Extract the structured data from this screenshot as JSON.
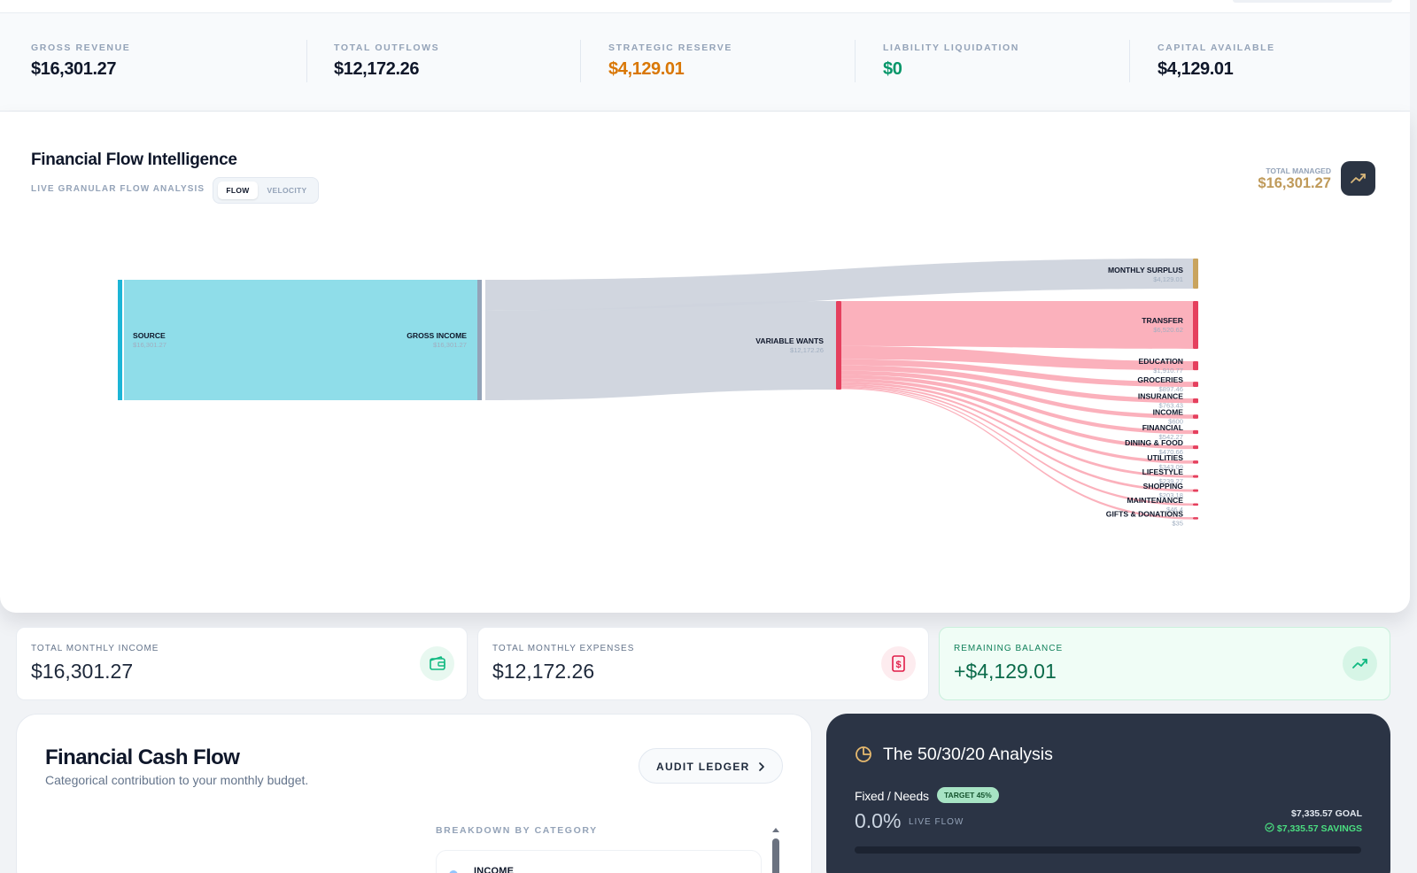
{
  "top_stats": [
    {
      "label": "GROSS REVENUE",
      "value": "$16,301.27",
      "color": "#0f172a"
    },
    {
      "label": "TOTAL OUTFLOWS",
      "value": "$12,172.26",
      "color": "#0f172a"
    },
    {
      "label": "STRATEGIC RESERVE",
      "value": "$4,129.01",
      "color": "#d97706"
    },
    {
      "label": "LIABILITY LIQUIDATION",
      "value": "$0",
      "color": "#059669"
    },
    {
      "label": "CAPITAL AVAILABLE",
      "value": "$4,129.01",
      "color": "#0f172a"
    }
  ],
  "flow": {
    "title": "Financial Flow Intelligence",
    "subtitle": "LIVE GRANULAR FLOW ANALYSIS",
    "toggle": [
      "FLOW",
      "VELOCITY"
    ],
    "active_toggle": "FLOW",
    "total_managed_label": "TOTAL MANAGED",
    "total_managed_value": "$16,301.27",
    "icon": "trending-up-icon"
  },
  "sankey": {
    "colors": {
      "source": "#1cb5d6",
      "source_band": "#8fdde9",
      "neutral_band": "#cfd4dd",
      "neutral_node": "#94a3b8",
      "wants_band": "#fba8b5",
      "wants_node": "#e5405e",
      "surplus_node": "#c9a45e"
    },
    "nodes": [
      {
        "id": "source",
        "name": "SOURCE",
        "value": "$16,301.27"
      },
      {
        "id": "gross",
        "name": "GROSS INCOME",
        "value": "$16,301.27"
      },
      {
        "id": "wants",
        "name": "VARIABLE WANTS",
        "value": "$12,172.26"
      },
      {
        "id": "surplus",
        "name": "MONTHLY SURPLUS",
        "value": "$4,129.01"
      }
    ],
    "categories": [
      {
        "name": "TRANSFER",
        "value": "$6,520.62",
        "amount": 6520.62
      },
      {
        "name": "EDUCATION",
        "value": "$1,910.77",
        "amount": 1910.77
      },
      {
        "name": "GROCERIES",
        "value": "$897.46",
        "amount": 897.46
      },
      {
        "name": "INSURANCE",
        "value": "$763.43",
        "amount": 763.43
      },
      {
        "name": "INCOME",
        "value": "$600",
        "amount": 600
      },
      {
        "name": "FINANCIAL",
        "value": "$542.27",
        "amount": 542.27
      },
      {
        "name": "DINING & FOOD",
        "value": "$470.66",
        "amount": 470.66
      },
      {
        "name": "UTILITIES",
        "value": "$343.09",
        "amount": 343.09
      },
      {
        "name": "LIFESTYLE",
        "value": "$239.27",
        "amount": 239.27
      },
      {
        "name": "SHOPPING",
        "value": "$203.18",
        "amount": 203.18
      },
      {
        "name": "MAINTENANCE",
        "value": "$46.4",
        "amount": 46.4
      },
      {
        "name": "GIFTS & DONATIONS",
        "value": "$35",
        "amount": 35
      }
    ]
  },
  "summary": [
    {
      "label": "TOTAL MONTHLY INCOME",
      "value": "$16,301.27",
      "icon": "wallet-icon"
    },
    {
      "label": "TOTAL MONTHLY EXPENSES",
      "value": "$12,172.26",
      "icon": "dollar-receipt-icon"
    },
    {
      "label": "REMAINING BALANCE",
      "value": "+$4,129.01",
      "icon": "trending-up-icon"
    }
  ],
  "cash_flow": {
    "title": "Financial Cash Flow",
    "subtitle": "Categorical contribution to your monthly budget.",
    "audit_button": "AUDIT LEDGER",
    "breakdown_label": "BREAKDOWN BY CATEGORY",
    "first_item": "INCOME"
  },
  "analysis": {
    "title": "The 50/30/20 Analysis",
    "icon": "pie-chart-icon",
    "row_label": "Fixed / Needs",
    "badge": "TARGET 45%",
    "percent": "0.0%",
    "percent_value": 0,
    "live_label": "LIVE FLOW",
    "goal": "$7,335.57 GOAL",
    "savings": "$7,335.57 SAVINGS"
  }
}
